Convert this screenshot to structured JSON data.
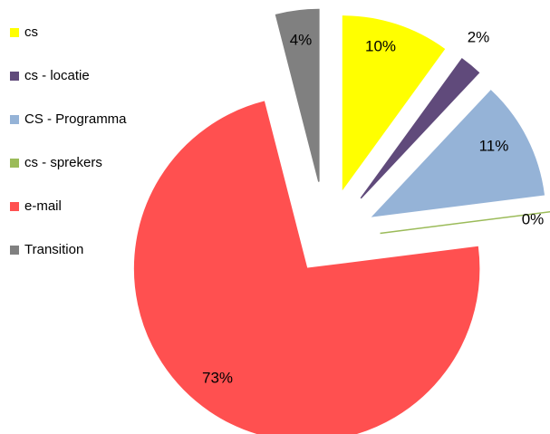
{
  "chart_data": {
    "type": "pie",
    "categories": [
      "cs",
      "cs - locatie",
      "CS - Programma",
      "cs - sprekers",
      "e-mail",
      "Transition"
    ],
    "values": [
      10,
      2,
      11,
      0,
      73,
      4
    ],
    "value_labels": [
      "10%",
      "2%",
      "11%",
      "0%",
      "73%",
      "4%"
    ],
    "colors": [
      "#ffff00",
      "#604a7b",
      "#95b3d7",
      "#9bbb59",
      "#ff5050",
      "#808080"
    ],
    "legend": "left"
  }
}
